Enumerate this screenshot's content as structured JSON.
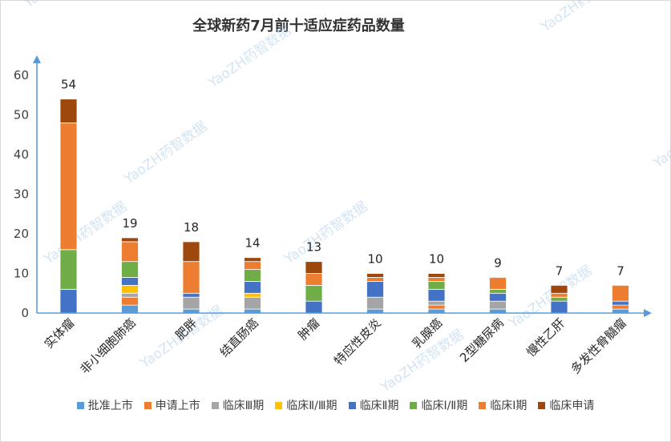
{
  "chart_data": {
    "type": "bar",
    "stacked": true,
    "title": "全球新药7月前十适应症药品数量",
    "xlabel": "",
    "ylabel": "",
    "ylim": [
      0,
      60
    ],
    "yticks": [
      "0",
      "10",
      "20",
      "30",
      "40",
      "50",
      "60"
    ],
    "grid": false,
    "legend_position": "bottom",
    "categories": [
      "实体瘤",
      "非小细胞肺癌",
      "肥胖",
      "结直肠癌",
      "肿瘤",
      "特应性皮炎",
      "乳腺癌",
      "2型糖尿病",
      "慢性乙肝",
      "多发性骨髓瘤"
    ],
    "totals": [
      54,
      19,
      18,
      14,
      13,
      10,
      10,
      9,
      7,
      7
    ],
    "series": [
      {
        "name": "批准上市",
        "color": "#5b9bd5",
        "values": [
          0,
          2,
          1,
          1,
          0,
          1,
          1,
          1,
          0,
          1
        ]
      },
      {
        "name": "申请上市",
        "color": "#ed7d31",
        "values": [
          0,
          2,
          0,
          0,
          0,
          0,
          1,
          0,
          0,
          1
        ]
      },
      {
        "name": "临床Ⅲ期",
        "color": "#a5a5a5",
        "values": [
          0,
          1,
          3,
          3,
          0,
          3,
          1,
          2,
          0,
          0
        ]
      },
      {
        "name": "临床Ⅱ/Ⅲ期",
        "color": "#ffc000",
        "values": [
          0,
          2,
          0,
          1,
          0,
          0,
          0,
          0,
          0,
          0
        ]
      },
      {
        "name": "临床Ⅱ期",
        "color": "#4472c4",
        "values": [
          6,
          2,
          1,
          3,
          3,
          4,
          3,
          2,
          3,
          1
        ]
      },
      {
        "name": "临床Ⅰ/Ⅱ期",
        "color": "#70ad47",
        "values": [
          10,
          4,
          0,
          3,
          4,
          0,
          2,
          1,
          1,
          0
        ]
      },
      {
        "name": "临床Ⅰ期",
        "color": "#ed7d31",
        "values": [
          32,
          5,
          8,
          2,
          3,
          1,
          1,
          3,
          1,
          4
        ]
      },
      {
        "name": "临床申请",
        "color": "#9e480e",
        "values": [
          6,
          1,
          5,
          1,
          3,
          1,
          1,
          0,
          2,
          0
        ]
      }
    ]
  },
  "watermark": "YaoZH药智数据"
}
